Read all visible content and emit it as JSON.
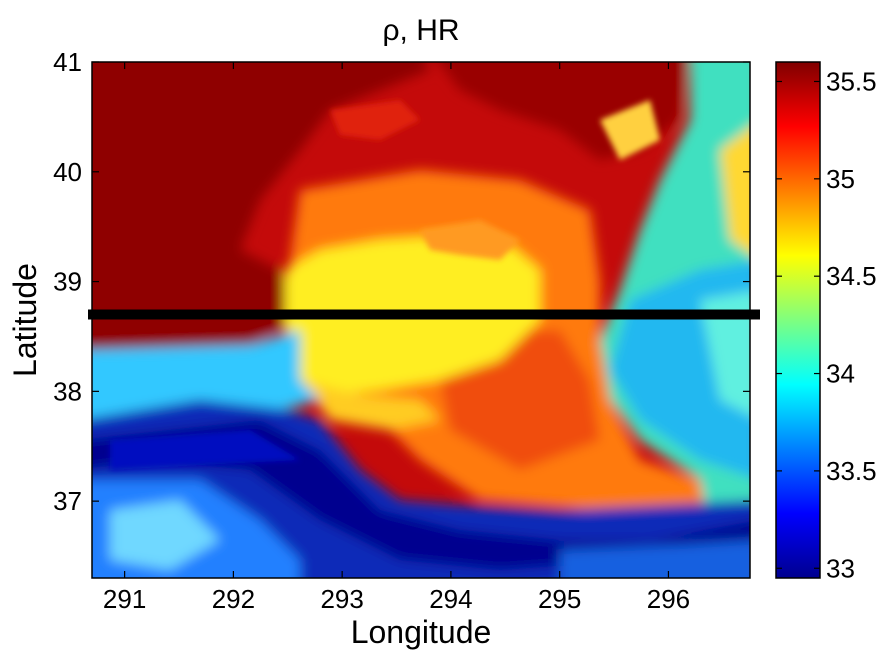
{
  "chart_data": {
    "type": "heatmap",
    "title": "ρ, HR",
    "xlabel": "Longitude",
    "ylabel": "Latitude",
    "xlim": [
      290.7,
      296.75
    ],
    "ylim": [
      36.3,
      41.0
    ],
    "x_ticks": [
      "291",
      "292",
      "293",
      "294",
      "295",
      "296"
    ],
    "y_ticks": [
      "37",
      "38",
      "39",
      "40",
      "41"
    ],
    "colorbar": {
      "range": [
        32.95,
        35.6
      ],
      "ticks": [
        "33",
        "33.5",
        "34",
        "34.5",
        "35",
        "35.5"
      ],
      "colormap": "jet"
    },
    "section_line": {
      "latitude": 38.7,
      "color": "#000000"
    },
    "grid": false
  }
}
